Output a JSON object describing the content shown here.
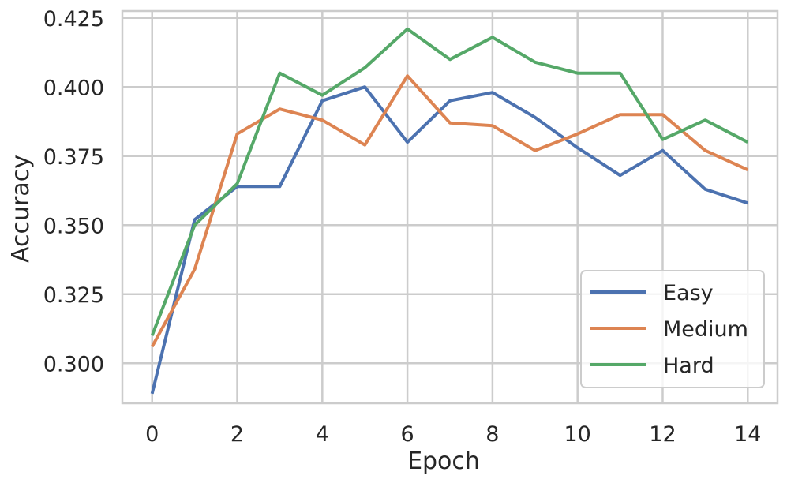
{
  "chart_data": {
    "type": "line",
    "title": "",
    "xlabel": "Epoch",
    "ylabel": "Accuracy",
    "x": [
      0,
      1,
      2,
      3,
      4,
      5,
      6,
      7,
      8,
      9,
      10,
      11,
      12,
      13,
      14
    ],
    "xlim": [
      -0.7,
      14.7
    ],
    "ylim": [
      0.2855,
      0.4275
    ],
    "xticks": [
      0,
      2,
      4,
      6,
      8,
      10,
      12,
      14
    ],
    "xtick_labels": [
      "0",
      "2",
      "4",
      "6",
      "8",
      "10",
      "12",
      "14"
    ],
    "yticks": [
      0.3,
      0.325,
      0.35,
      0.375,
      0.4,
      0.425
    ],
    "ytick_labels": [
      "0.300",
      "0.325",
      "0.350",
      "0.375",
      "0.400",
      "0.425"
    ],
    "grid": true,
    "legend_position": "bottom-right",
    "series": [
      {
        "name": "Easy",
        "color": "#4c72b0",
        "values": [
          0.289,
          0.352,
          0.364,
          0.364,
          0.395,
          0.4,
          0.38,
          0.395,
          0.398,
          0.389,
          0.378,
          0.368,
          0.377,
          0.363,
          0.358
        ]
      },
      {
        "name": "Medium",
        "color": "#dd8452",
        "values": [
          0.306,
          0.334,
          0.383,
          0.392,
          0.388,
          0.379,
          0.404,
          0.387,
          0.386,
          0.377,
          0.383,
          0.39,
          0.39,
          0.377,
          0.37
        ]
      },
      {
        "name": "Hard",
        "color": "#55a868",
        "values": [
          0.31,
          0.35,
          0.365,
          0.405,
          0.397,
          0.407,
          0.421,
          0.41,
          0.418,
          0.409,
          0.405,
          0.405,
          0.381,
          0.388,
          0.38
        ]
      }
    ]
  }
}
